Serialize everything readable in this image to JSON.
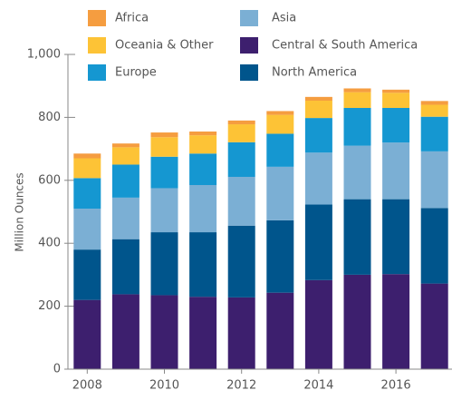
{
  "chart_data": {
    "type": "stacked_bar",
    "y_label": "Million Ounces",
    "categories": [
      "2008",
      null,
      "2010",
      null,
      "2012",
      null,
      "2014",
      null,
      "2016",
      null
    ],
    "series": [
      {
        "name": "Central & South America",
        "color": "#3d1f6e",
        "values": [
          220,
          238,
          235,
          230,
          228,
          243,
          283,
          300,
          302,
          272
        ]
      },
      {
        "name": "North America",
        "color": "#00558c",
        "values": [
          160,
          175,
          200,
          205,
          228,
          230,
          240,
          240,
          238,
          240
        ]
      },
      {
        "name": "Asia",
        "color": "#7bafd4",
        "values": [
          130,
          132,
          140,
          150,
          155,
          170,
          165,
          170,
          180,
          180
        ]
      },
      {
        "name": "Europe",
        "color": "#1597d1",
        "values": [
          97,
          105,
          100,
          100,
          110,
          105,
          110,
          120,
          110,
          110
        ]
      },
      {
        "name": "Oceania & Other",
        "color": "#fdc336",
        "values": [
          63,
          55,
          62,
          58,
          57,
          60,
          55,
          50,
          48,
          38
        ]
      },
      {
        "name": "Africa",
        "color": "#f59d40",
        "values": [
          15,
          12,
          15,
          12,
          12,
          12,
          12,
          12,
          10,
          12
        ]
      }
    ],
    "ylim": [
      0,
      1000
    ],
    "yticks": [
      0,
      200,
      400,
      600,
      800,
      {
        "value": 1000,
        "label": "1,000"
      }
    ],
    "grid": false,
    "legend": "top"
  }
}
